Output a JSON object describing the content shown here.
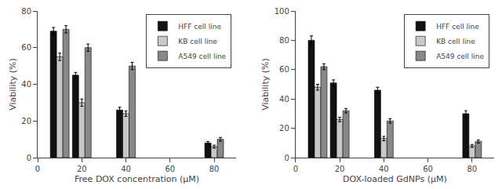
{
  "chart_data": [
    {
      "type": "bar",
      "xlabel": "Free DOX concentration (μM)",
      "ylabel": "Viability (%)",
      "x": [
        10,
        20,
        40,
        80
      ],
      "xlim": [
        0,
        90
      ],
      "xticks": [
        0,
        20,
        40,
        60,
        80
      ],
      "ylim": [
        0,
        80
      ],
      "yticks": [
        0,
        20,
        40,
        60,
        80
      ],
      "grid": false,
      "legend": "upper right",
      "series": [
        {
          "name": "HFF cell line",
          "color": "#111111",
          "values": [
            69,
            45,
            26,
            8
          ],
          "errors": [
            2,
            1.5,
            1.5,
            0.8
          ]
        },
        {
          "name": "KB cell line",
          "color": "#c8c8c8",
          "values": [
            55,
            30,
            24,
            6
          ],
          "errors": [
            2,
            2,
            1.5,
            0.8
          ]
        },
        {
          "name": "A549 cell line",
          "color": "#888888",
          "values": [
            70,
            60,
            50,
            10
          ],
          "errors": [
            2,
            2,
            2,
            1
          ]
        }
      ]
    },
    {
      "type": "bar",
      "xlabel": "DOX-loaded GdNPs (μM)",
      "ylabel": "Viability (%)",
      "x": [
        10,
        20,
        40,
        80
      ],
      "xlim": [
        0,
        90
      ],
      "xticks": [
        0,
        20,
        40,
        60,
        80
      ],
      "ylim": [
        0,
        100
      ],
      "yticks": [
        0,
        20,
        40,
        60,
        80,
        100
      ],
      "grid": false,
      "legend": "upper right",
      "series": [
        {
          "name": "HFF cell line",
          "color": "#111111",
          "values": [
            80,
            51,
            46,
            30
          ],
          "errors": [
            3,
            2,
            2,
            2
          ]
        },
        {
          "name": "KB cell line",
          "color": "#c8c8c8",
          "values": [
            48,
            26,
            13,
            8
          ],
          "errors": [
            2,
            1.5,
            1.5,
            1
          ]
        },
        {
          "name": "A549 cell line",
          "color": "#888888",
          "values": [
            62,
            32,
            25,
            11
          ],
          "errors": [
            2,
            1.5,
            1.5,
            1
          ]
        }
      ]
    }
  ]
}
